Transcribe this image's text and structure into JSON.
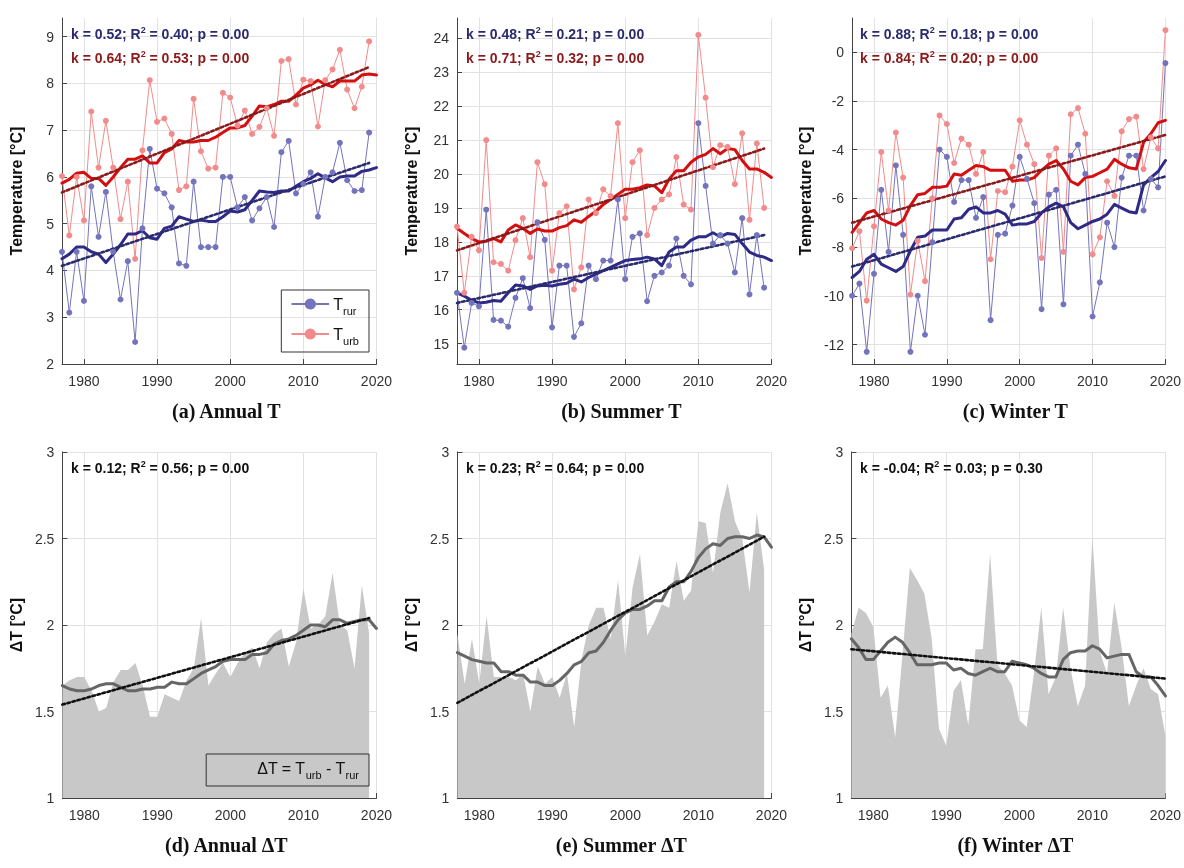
{
  "chart_data": [
    {
      "type": "line",
      "title": "(a) Annual T",
      "ylabel": "Temperature [°C]",
      "annotations": [
        "k = 0.52; R$^{2}$ = 0.40; p = 0.00",
        "k = 0.64; R$^{2}$ = 0.53; p = 0.00"
      ],
      "x": [
        1977,
        1978,
        1979,
        1980,
        1981,
        1982,
        1983,
        1984,
        1985,
        1986,
        1987,
        1988,
        1989,
        1990,
        1991,
        1992,
        1993,
        1994,
        1995,
        1996,
        1997,
        1998,
        1999,
        2000,
        2001,
        2002,
        2003,
        2004,
        2005,
        2006,
        2007,
        2008,
        2009,
        2010,
        2011,
        2012,
        2013,
        2014,
        2015,
        2016,
        2017,
        2018,
        2019
      ],
      "xlim": [
        1977,
        2020
      ],
      "xticks": [
        1980,
        1990,
        2000,
        2010,
        2020
      ],
      "ylim": [
        2,
        9.4
      ],
      "yticks": [
        2,
        3,
        4,
        5,
        6,
        7,
        8,
        9
      ],
      "grid": true,
      "legend": "bottom right",
      "series": [
        {
          "name": "T$_{rur}$",
          "color": "#7474bd",
          "marker": "circle",
          "values": [
            4.4,
            3.1,
            4.4,
            3.35,
            5.8,
            4.72,
            5.68,
            4.4,
            3.38,
            4.2,
            2.47,
            4.9,
            6.6,
            5.75,
            5.65,
            5.35,
            4.15,
            4.1,
            5.9,
            4.5,
            4.5,
            4.5,
            6.0,
            6.0,
            5.35,
            5.57,
            5.07,
            5.33,
            5.57,
            4.93,
            6.53,
            6.77,
            5.65,
            5.85,
            6.1,
            5.15,
            6.0,
            6.1,
            6.73,
            5.93,
            5.7,
            5.72,
            6.95
          ]
        },
        {
          "name": "T$_{urb}$",
          "color": "#f28b8b",
          "marker": "circle",
          "values": [
            6.02,
            4.75,
            6.0,
            5.07,
            7.4,
            6.2,
            7.2,
            6.2,
            5.1,
            5.9,
            4.25,
            6.57,
            8.07,
            7.18,
            7.25,
            6.92,
            5.72,
            5.8,
            7.67,
            6.55,
            6.18,
            6.2,
            7.8,
            7.7,
            7.1,
            7.42,
            6.92,
            7.07,
            7.47,
            6.88,
            8.48,
            8.52,
            7.55,
            8.08,
            8.05,
            7.08,
            8.07,
            8.3,
            8.72,
            7.87,
            7.47,
            7.93,
            8.9
          ]
        },
        {
          "color": "#2e2a85",
          "x": [
            1977,
            1978,
            1979,
            1980,
            1981,
            1982,
            1983,
            1984,
            1985,
            1986,
            1987,
            1988,
            1989,
            1990,
            1991,
            1992,
            1993,
            1994,
            1995,
            1996,
            1997,
            1998,
            1999,
            2000,
            2001,
            2002,
            2003,
            2004,
            2005,
            2006,
            2007,
            2008,
            2009,
            2010,
            2011,
            2012,
            2013,
            2014,
            2015,
            2016,
            2017,
            2018,
            2019,
            2020
          ],
          "values": [
            4.25,
            4.35,
            4.5,
            4.5,
            4.4,
            4.35,
            4.17,
            4.35,
            4.55,
            4.78,
            4.78,
            4.85,
            4.7,
            4.67,
            4.9,
            4.95,
            5.15,
            5.1,
            5.05,
            5.08,
            5.05,
            5.05,
            5.15,
            5.27,
            5.25,
            5.3,
            5.5,
            5.7,
            5.68,
            5.67,
            5.7,
            5.7,
            5.8,
            5.9,
            5.97,
            6.07,
            5.98,
            5.9,
            6.0,
            6.02,
            6.02,
            6.12,
            6.15,
            6.2
          ]
        },
        {
          "color": "#d40f0f",
          "x": [
            1977,
            1978,
            1979,
            1980,
            1981,
            1982,
            1983,
            1984,
            1985,
            1986,
            1987,
            1988,
            1989,
            1990,
            1991,
            1992,
            1993,
            1994,
            1995,
            1996,
            1997,
            1998,
            1999,
            2000,
            2001,
            2002,
            2003,
            2004,
            2005,
            2006,
            2007,
            2008,
            2009,
            2010,
            2011,
            2012,
            2013,
            2014,
            2015,
            2016,
            2017,
            2018,
            2019,
            2020
          ],
          "values": [
            5.87,
            5.95,
            6.08,
            6.1,
            5.97,
            5.97,
            5.82,
            6.0,
            6.2,
            6.38,
            6.38,
            6.45,
            6.3,
            6.3,
            6.52,
            6.6,
            6.78,
            6.75,
            6.75,
            6.78,
            6.78,
            6.85,
            6.95,
            7.05,
            7.05,
            7.1,
            7.3,
            7.52,
            7.5,
            7.55,
            7.62,
            7.62,
            7.75,
            7.9,
            7.97,
            8.07,
            7.98,
            7.93,
            8.05,
            8.05,
            8.05,
            8.18,
            8.2,
            8.18
          ]
        },
        {
          "color": "#2a2a6e",
          "line_style": "dotted",
          "x": [
            1977,
            2019
          ],
          "values": [
            4.1,
            6.3
          ]
        },
        {
          "color": "#8b1a1a",
          "line_style": "dotted",
          "x": [
            1977,
            2019
          ],
          "values": [
            5.67,
            8.35
          ]
        }
      ]
    },
    {
      "type": "line",
      "title": "(b) Summer T",
      "ylabel": "Temperature [°C]",
      "annotations": [
        "k = 0.48; R$^{2}$ = 0.21; p = 0.00",
        "k = 0.71; R$^{2}$ = 0.32; p = 0.00"
      ],
      "x": [
        1977,
        1978,
        1979,
        1980,
        1981,
        1982,
        1983,
        1984,
        1985,
        1986,
        1987,
        1988,
        1989,
        1990,
        1991,
        1992,
        1993,
        1994,
        1995,
        1996,
        1997,
        1998,
        1999,
        2000,
        2001,
        2002,
        2003,
        2004,
        2005,
        2006,
        2007,
        2008,
        2009,
        2010,
        2011,
        2012,
        2013,
        2014,
        2015,
        2016,
        2017,
        2018,
        2019
      ],
      "xlim": [
        1977,
        2020
      ],
      "xticks": [
        1980,
        1990,
        2000,
        2010,
        2020
      ],
      "ylim": [
        14.4,
        24.6
      ],
      "yticks": [
        15,
        16,
        17,
        18,
        19,
        20,
        21,
        22,
        23,
        24
      ],
      "grid": true,
      "series": [
        {
          "color": "#7474bd",
          "marker": "circle",
          "values": [
            16.5,
            14.88,
            16.2,
            16.1,
            18.95,
            15.7,
            15.68,
            15.5,
            16.35,
            16.93,
            16.05,
            18.58,
            18.06,
            15.48,
            17.3,
            17.3,
            15.2,
            15.6,
            17.3,
            16.9,
            17.45,
            17.45,
            19.25,
            16.9,
            18.15,
            18.25,
            16.25,
            17.0,
            17.1,
            17.3,
            18.1,
            17.0,
            16.75,
            21.5,
            19.65,
            17.95,
            18.2,
            17.95,
            17.1,
            18.7,
            16.45,
            18.2,
            16.65
          ]
        },
        {
          "color": "#f28b8b",
          "marker": "circle",
          "values": [
            18.45,
            16.5,
            18.15,
            17.75,
            21.0,
            17.4,
            17.35,
            17.15,
            18.05,
            18.7,
            17.55,
            20.35,
            19.7,
            17.15,
            18.85,
            19.05,
            16.6,
            17.25,
            19.25,
            18.85,
            19.55,
            19.35,
            21.5,
            18.7,
            20.35,
            20.7,
            18.2,
            19.0,
            19.25,
            19.4,
            20.5,
            19.1,
            18.95,
            24.1,
            22.25,
            20.2,
            20.85,
            20.8,
            19.7,
            21.2,
            18.65,
            20.9,
            19.0
          ]
        },
        {
          "color": "#2e2a85",
          "x": [
            1977,
            1978,
            1979,
            1980,
            1981,
            1982,
            1983,
            1984,
            1985,
            1986,
            1987,
            1988,
            1989,
            1990,
            1991,
            1992,
            1993,
            1994,
            1995,
            1996,
            1997,
            1998,
            1999,
            2000,
            2001,
            2002,
            2003,
            2004,
            2005,
            2006,
            2007,
            2008,
            2009,
            2010,
            2011,
            2012,
            2013,
            2014,
            2015,
            2016,
            2017,
            2018,
            2019,
            2020
          ],
          "values": [
            16.5,
            16.4,
            16.28,
            16.2,
            16.22,
            16.27,
            16.25,
            16.5,
            16.73,
            16.7,
            16.6,
            16.7,
            16.72,
            16.7,
            16.75,
            16.78,
            16.9,
            16.82,
            16.95,
            17.05,
            17.15,
            17.25,
            17.35,
            17.45,
            17.48,
            17.5,
            17.55,
            17.5,
            17.3,
            17.7,
            17.85,
            17.85,
            18.05,
            18.15,
            18.15,
            18.27,
            18.15,
            18.25,
            18.22,
            17.95,
            17.7,
            17.6,
            17.55,
            17.45
          ]
        },
        {
          "color": "#d40f0f",
          "x": [
            1977,
            1978,
            1979,
            1980,
            1981,
            1982,
            1983,
            1984,
            1985,
            1986,
            1987,
            1988,
            1989,
            1990,
            1991,
            1992,
            1993,
            1994,
            1995,
            1996,
            1997,
            1998,
            1999,
            2000,
            2001,
            2002,
            2003,
            2004,
            2005,
            2006,
            2007,
            2008,
            2009,
            2010,
            2011,
            2012,
            2013,
            2014,
            2015,
            2016,
            2017,
            2018,
            2019,
            2020
          ],
          "values": [
            18.4,
            18.25,
            18.1,
            18.0,
            18.02,
            18.1,
            18.0,
            18.35,
            18.5,
            18.4,
            18.25,
            18.38,
            18.32,
            18.32,
            18.42,
            18.48,
            18.65,
            18.58,
            18.75,
            18.9,
            19.1,
            19.25,
            19.4,
            19.55,
            19.55,
            19.6,
            19.68,
            19.65,
            19.45,
            19.85,
            20.1,
            20.1,
            20.35,
            20.5,
            20.58,
            20.75,
            20.6,
            20.75,
            20.72,
            20.4,
            20.15,
            20.15,
            20.05,
            19.9
          ]
        },
        {
          "color": "#2a2a6e",
          "line_style": "dotted",
          "x": [
            1977,
            2019
          ],
          "values": [
            16.2,
            18.2
          ]
        },
        {
          "color": "#8b1a1a",
          "line_style": "dotted",
          "x": [
            1977,
            2019
          ],
          "values": [
            17.75,
            20.75
          ]
        }
      ]
    },
    {
      "type": "line",
      "title": "(c) Winter T",
      "ylabel": "Temperature [°C]",
      "annotations": [
        "k = 0.88; R$^{2}$ = 0.18; p = 0.00",
        "k = 0.84; R$^{2}$ = 0.20; p = 0.00"
      ],
      "x": [
        1977,
        1978,
        1979,
        1980,
        1981,
        1982,
        1983,
        1984,
        1985,
        1986,
        1987,
        1988,
        1989,
        1990,
        1991,
        1992,
        1993,
        1994,
        1995,
        1996,
        1997,
        1998,
        1999,
        2000,
        2001,
        2002,
        2003,
        2004,
        2005,
        2006,
        2007,
        2008,
        2009,
        2010,
        2011,
        2012,
        2013,
        2014,
        2015,
        2016,
        2017,
        2018,
        2019,
        2020
      ],
      "xlim": [
        1977,
        2020
      ],
      "xticks": [
        1980,
        1990,
        2000,
        2010,
        2020
      ],
      "ylim": [
        -12.8,
        1.4
      ],
      "yticks": [
        -12,
        -10,
        -8,
        -6,
        -4,
        -2,
        0
      ],
      "grid": true,
      "series": [
        {
          "color": "#7474bd",
          "marker": "circle",
          "values": [
            -10,
            -9.5,
            -12.3,
            -9.1,
            -5.65,
            -8.2,
            -4.65,
            -7.5,
            -12.3,
            -10,
            -11.6,
            -7.8,
            -4.0,
            -4.3,
            -6.15,
            -5.25,
            -5.25,
            -6.8,
            -5.95,
            -11.0,
            -7.5,
            -7.45,
            -6.3,
            -4.3,
            -5.2,
            -6.2,
            -10.55,
            -5.85,
            -5.65,
            -10.35,
            -4.25,
            -3.8,
            -5.0,
            -10.85,
            -9.45,
            -7.0,
            -8.0,
            -5.15,
            -4.25,
            -4.25,
            -6.5,
            -5.2,
            -5.55,
            -0.45
          ]
        },
        {
          "color": "#f28b8b",
          "marker": "circle",
          "values": [
            -8.05,
            -7.35,
            -10.2,
            -7.15,
            -4.1,
            -6.5,
            -3.3,
            -5.15,
            -9.95,
            -7.75,
            -9.4,
            -6.0,
            -2.6,
            -2.95,
            -4.55,
            -3.55,
            -3.8,
            -5.0,
            -4.1,
            -8.5,
            -5.7,
            -5.75,
            -4.7,
            -2.8,
            -3.8,
            -4.6,
            -8.45,
            -4.25,
            -3.95,
            -8.2,
            -2.55,
            -2.3,
            -3.35,
            -8.3,
            -7.6,
            -5.3,
            -5.9,
            -3.25,
            -2.75,
            -2.65,
            -4.8,
            -3.5,
            -3.95,
            0.9
          ]
        },
        {
          "color": "#2e2a85",
          "values": [
            -9.25,
            -9.0,
            -8.5,
            -8.3,
            -8.7,
            -8.85,
            -9.0,
            -8.8,
            -8.15,
            -7.6,
            -7.55,
            -7.3,
            -7.3,
            -7.3,
            -6.85,
            -6.8,
            -6.45,
            -6.35,
            -6.6,
            -6.6,
            -6.5,
            -6.65,
            -7.1,
            -7.05,
            -7.05,
            -6.95,
            -6.6,
            -6.35,
            -6.2,
            -6.35,
            -7.0,
            -7.25,
            -7.1,
            -6.95,
            -6.85,
            -6.65,
            -6.25,
            -6.4,
            -6.55,
            -6.6,
            -5.45,
            -5.15,
            -4.9,
            -4.45
          ]
        },
        {
          "color": "#d40f0f",
          "values": [
            -7.4,
            -7.0,
            -6.6,
            -6.5,
            -6.85,
            -7.0,
            -7.1,
            -6.9,
            -6.3,
            -5.85,
            -5.8,
            -5.55,
            -5.55,
            -5.5,
            -5.0,
            -5.05,
            -4.85,
            -4.65,
            -4.7,
            -4.85,
            -4.85,
            -4.85,
            -5.3,
            -5.25,
            -5.25,
            -5.15,
            -4.85,
            -4.6,
            -4.45,
            -4.8,
            -5.3,
            -5.45,
            -5.15,
            -5.1,
            -4.95,
            -4.8,
            -4.4,
            -4.6,
            -4.75,
            -4.8,
            -3.7,
            -3.35,
            -2.9,
            -2.8
          ]
        },
        {
          "color": "#2a2a6e",
          "line_style": "dotted",
          "x": [
            1977,
            2020
          ],
          "values": [
            -8.8,
            -5.1
          ]
        },
        {
          "color": "#8b1a1a",
          "line_style": "dotted",
          "x": [
            1977,
            2020
          ],
          "values": [
            -7.0,
            -3.4
          ]
        }
      ]
    },
    {
      "type": "line",
      "title": "(d) Annual ΔT",
      "ylabel": "ΔT [°C]",
      "annotations": [
        "k = 0.12; R$^{2}$ = 0.56; p = 0.00"
      ],
      "x": [
        1977,
        1978,
        1979,
        1980,
        1981,
        1982,
        1983,
        1984,
        1985,
        1986,
        1987,
        1988,
        1989,
        1990,
        1991,
        1992,
        1993,
        1994,
        1995,
        1996,
        1997,
        1998,
        1999,
        2000,
        2001,
        2002,
        2003,
        2004,
        2005,
        2006,
        2007,
        2008,
        2009,
        2010,
        2011,
        2012,
        2013,
        2014,
        2015,
        2016,
        2017,
        2018,
        2019
      ],
      "xlim": [
        1977,
        2020
      ],
      "xticks": [
        1980,
        1990,
        2000,
        2010,
        2020
      ],
      "ylim": [
        1,
        3
      ],
      "yticks": [
        1,
        1.5,
        2,
        2.5,
        3
      ],
      "grid": true,
      "legend": "bottom right",
      "series": [
        {
          "name": "ΔT = T$_{urb}$ - T$_{rur}$",
          "type": "area",
          "color": "#c8c8c8",
          "values": [
            1.65,
            1.68,
            1.7,
            1.7,
            1.62,
            1.5,
            1.52,
            1.67,
            1.74,
            1.74,
            1.78,
            1.65,
            1.47,
            1.47,
            1.6,
            1.58,
            1.56,
            1.68,
            1.75,
            2.04,
            1.65,
            1.72,
            1.78,
            1.7,
            1.78,
            1.84,
            1.87,
            1.75,
            1.9,
            1.95,
            1.98,
            1.76,
            1.9,
            2.21,
            1.98,
            2.0,
            2.05,
            2.3,
            2.0,
            1.97,
            1.75,
            2.23,
            1.95
          ]
        },
        {
          "color": "#666666",
          "x": [
            1977,
            1978,
            1979,
            1980,
            1981,
            1982,
            1983,
            1984,
            1985,
            1986,
            1987,
            1988,
            1989,
            1990,
            1991,
            1992,
            1993,
            1994,
            1995,
            1996,
            1997,
            1998,
            1999,
            2000,
            2001,
            2002,
            2003,
            2004,
            2005,
            2006,
            2007,
            2008,
            2009,
            2010,
            2011,
            2012,
            2013,
            2014,
            2015,
            2016,
            2017,
            2018,
            2019,
            2020
          ],
          "values": [
            1.65,
            1.63,
            1.62,
            1.62,
            1.63,
            1.65,
            1.66,
            1.66,
            1.64,
            1.62,
            1.62,
            1.63,
            1.63,
            1.64,
            1.64,
            1.67,
            1.66,
            1.66,
            1.69,
            1.72,
            1.74,
            1.76,
            1.79,
            1.8,
            1.8,
            1.8,
            1.83,
            1.83,
            1.84,
            1.89,
            1.91,
            1.92,
            1.94,
            1.97,
            2.0,
            2.0,
            1.99,
            2.03,
            2.03,
            2.01,
            2.02,
            2.03,
            2.03,
            1.98
          ]
        },
        {
          "color": "#111111",
          "line_style": "dotted",
          "x": [
            1977,
            2019
          ],
          "values": [
            1.54,
            2.04
          ]
        }
      ]
    },
    {
      "type": "line",
      "title": "(e) Summer ΔT",
      "ylabel": "ΔT [°C]",
      "annotations": [
        "k = 0.23; R$^{2}$ = 0.64; p = 0.00"
      ],
      "x": [
        1977,
        1978,
        1979,
        1980,
        1981,
        1982,
        1983,
        1984,
        1985,
        1986,
        1987,
        1988,
        1989,
        1990,
        1991,
        1992,
        1993,
        1994,
        1995,
        1996,
        1997,
        1998,
        1999,
        2000,
        2001,
        2002,
        2003,
        2004,
        2005,
        2006,
        2007,
        2008,
        2009,
        2010,
        2011,
        2012,
        2013,
        2014,
        2015,
        2016,
        2017,
        2018,
        2019
      ],
      "xlim": [
        1977,
        2020
      ],
      "xticks": [
        1980,
        1990,
        2000,
        2010,
        2020
      ],
      "ylim": [
        1,
        3
      ],
      "yticks": [
        1,
        1.5,
        2,
        2.5,
        3
      ],
      "grid": true,
      "series": [
        {
          "type": "area",
          "color": "#c8c8c8",
          "values": [
            1.95,
            1.66,
            1.92,
            1.66,
            2.05,
            1.7,
            1.7,
            1.7,
            1.68,
            1.72,
            1.5,
            1.76,
            1.66,
            1.7,
            1.58,
            1.72,
            1.41,
            1.8,
            2.0,
            2.1,
            2.1,
            1.92,
            2.26,
            1.82,
            2.22,
            2.41,
            1.94,
            2.02,
            2.12,
            2.1,
            2.37,
            2.14,
            2.2,
            2.6,
            2.59,
            2.3,
            2.65,
            2.82,
            2.6,
            2.5,
            2.19,
            2.65,
            2.32
          ]
        },
        {
          "color": "#666666",
          "x": [
            1977,
            1978,
            1979,
            1980,
            1981,
            1982,
            1983,
            1984,
            1985,
            1986,
            1987,
            1988,
            1989,
            1990,
            1991,
            1992,
            1993,
            1994,
            1995,
            1996,
            1997,
            1998,
            1999,
            2000,
            2001,
            2002,
            2003,
            2004,
            2005,
            2006,
            2007,
            2008,
            2009,
            2010,
            2011,
            2012,
            2013,
            2014,
            2015,
            2016,
            2017,
            2018,
            2019,
            2020
          ],
          "values": [
            1.84,
            1.82,
            1.8,
            1.79,
            1.78,
            1.78,
            1.73,
            1.73,
            1.71,
            1.71,
            1.67,
            1.67,
            1.65,
            1.65,
            1.68,
            1.72,
            1.77,
            1.79,
            1.84,
            1.85,
            1.9,
            1.97,
            2.03,
            2.07,
            2.09,
            2.09,
            2.11,
            2.14,
            2.14,
            2.22,
            2.25,
            2.25,
            2.31,
            2.39,
            2.44,
            2.47,
            2.46,
            2.5,
            2.51,
            2.51,
            2.5,
            2.52,
            2.51,
            2.45
          ]
        },
        {
          "color": "#111111",
          "line_style": "dotted",
          "x": [
            1977,
            2019
          ],
          "values": [
            1.55,
            2.51
          ]
        }
      ]
    },
    {
      "type": "line",
      "title": "(f) Winter ΔT",
      "ylabel": "ΔT [°C]",
      "annotations": [
        "k = -0.04; R$^{2}$ = 0.03; p = 0.30"
      ],
      "x": [
        1977,
        1978,
        1979,
        1980,
        1981,
        1982,
        1983,
        1984,
        1985,
        1986,
        1987,
        1988,
        1989,
        1990,
        1991,
        1992,
        1993,
        1994,
        1995,
        1996,
        1997,
        1998,
        1999,
        2000,
        2001,
        2002,
        2003,
        2004,
        2005,
        2006,
        2007,
        2008,
        2009,
        2010,
        2011,
        2012,
        2013,
        2014,
        2015,
        2016,
        2017,
        2018,
        2019,
        2020
      ],
      "xlim": [
        1977,
        2020
      ],
      "xticks": [
        1980,
        1990,
        2000,
        2010,
        2020
      ],
      "ylim": [
        1,
        3
      ],
      "yticks": [
        1,
        1.5,
        2,
        2.5,
        3
      ],
      "grid": true,
      "series": [
        {
          "type": "area",
          "color": "#c8c8c8",
          "values": [
            1.95,
            2.1,
            2.07,
            1.99,
            1.58,
            1.65,
            1.35,
            1.83,
            2.33,
            2.26,
            2.18,
            1.92,
            1.4,
            1.3,
            1.62,
            1.68,
            1.42,
            1.86,
            1.86,
            2.41,
            1.77,
            1.72,
            1.65,
            1.45,
            1.41,
            1.72,
            2.1,
            1.6,
            1.7,
            2.1,
            1.75,
            1.53,
            1.65,
            2.51,
            1.85,
            1.72,
            2.13,
            1.87,
            1.53,
            1.65,
            1.75,
            1.63,
            1.6,
            1.36
          ]
        },
        {
          "color": "#666666",
          "values": [
            1.92,
            1.87,
            1.8,
            1.8,
            1.85,
            1.9,
            1.93,
            1.9,
            1.84,
            1.77,
            1.77,
            1.77,
            1.78,
            1.78,
            1.74,
            1.75,
            1.72,
            1.71,
            1.73,
            1.75,
            1.73,
            1.73,
            1.79,
            1.78,
            1.77,
            1.75,
            1.72,
            1.7,
            1.7,
            1.8,
            1.84,
            1.85,
            1.85,
            1.88,
            1.86,
            1.81,
            1.82,
            1.83,
            1.83,
            1.73,
            1.7,
            1.7,
            1.65,
            1.59
          ]
        },
        {
          "color": "#111111",
          "line_style": "dotted",
          "x": [
            1977,
            2020
          ],
          "values": [
            1.86,
            1.69
          ]
        }
      ]
    }
  ]
}
